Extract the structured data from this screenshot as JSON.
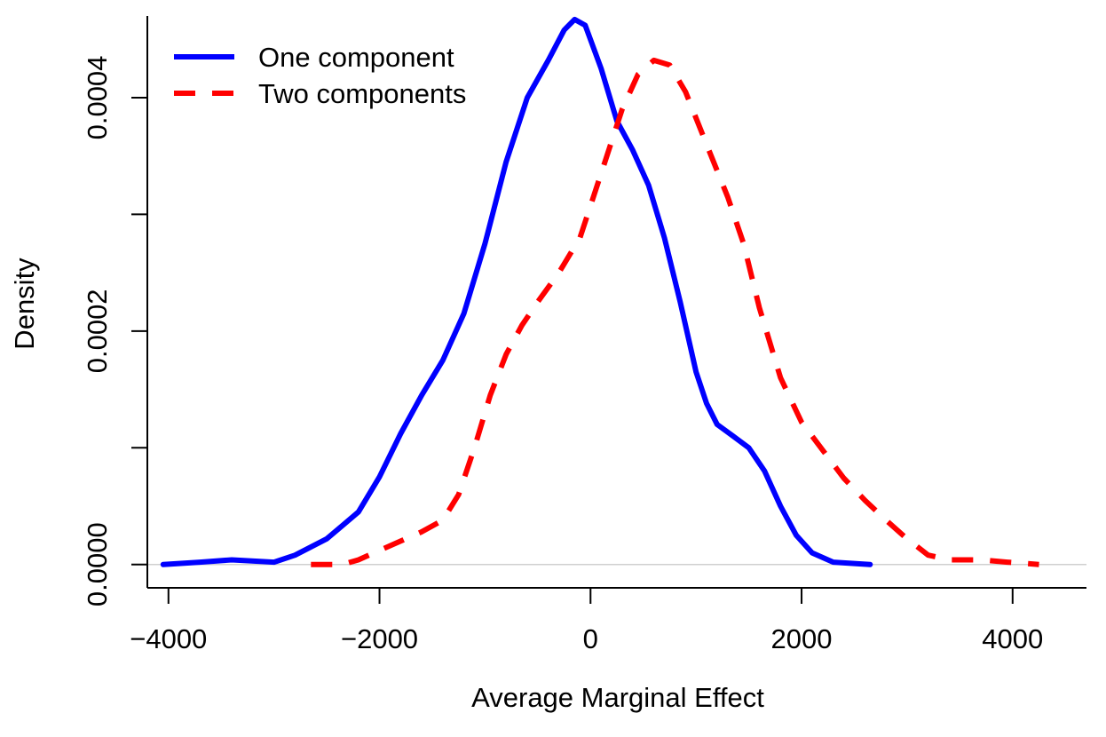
{
  "chart_data": {
    "type": "line",
    "xlabel": "Average Marginal Effect",
    "ylabel": "Density",
    "xlim": [
      -4200,
      4700
    ],
    "ylim": [
      -2e-05,
      0.00047
    ],
    "x_ticks": [
      -4000,
      -2000,
      0,
      2000,
      4000
    ],
    "x_tick_labels": [
      "−4000",
      "−2000",
      "0",
      "2000",
      "4000"
    ],
    "y_ticks": [
      0.0,
      0.0001,
      0.0002,
      0.0003,
      0.0004
    ],
    "y_tick_labels": [
      "0.0000",
      "",
      "0.0002",
      "",
      "0.0004"
    ],
    "grid": false,
    "baseline": 0,
    "legend": {
      "position": "top-left"
    },
    "series": [
      {
        "name": "One component",
        "color": "#0000ff",
        "style": "solid",
        "points": [
          [
            -4050,
            0.0
          ],
          [
            -3700,
            2e-06
          ],
          [
            -3400,
            4e-06
          ],
          [
            -3000,
            2e-06
          ],
          [
            -2800,
            8e-06
          ],
          [
            -2500,
            2.2e-05
          ],
          [
            -2200,
            4.5e-05
          ],
          [
            -2000,
            7.5e-05
          ],
          [
            -1800,
            0.000112
          ],
          [
            -1600,
            0.000145
          ],
          [
            -1400,
            0.000175
          ],
          [
            -1200,
            0.000215
          ],
          [
            -1000,
            0.000275
          ],
          [
            -800,
            0.000345
          ],
          [
            -600,
            0.0004
          ],
          [
            -400,
            0.000432
          ],
          [
            -250,
            0.000458
          ],
          [
            -150,
            0.000467
          ],
          [
            -50,
            0.000462
          ],
          [
            100,
            0.000425
          ],
          [
            250,
            0.00038
          ],
          [
            400,
            0.000355
          ],
          [
            550,
            0.000325
          ],
          [
            700,
            0.00028
          ],
          [
            850,
            0.000225
          ],
          [
            1000,
            0.000165
          ],
          [
            1100,
            0.000138
          ],
          [
            1200,
            0.00012
          ],
          [
            1350,
            0.00011
          ],
          [
            1500,
            0.0001
          ],
          [
            1650,
            8e-05
          ],
          [
            1800,
            5e-05
          ],
          [
            1950,
            2.5e-05
          ],
          [
            2100,
            1e-05
          ],
          [
            2300,
            2e-06
          ],
          [
            2650,
            0.0
          ]
        ]
      },
      {
        "name": "Two components",
        "color": "#ff0000",
        "style": "dashed",
        "points": [
          [
            -2650,
            0.0
          ],
          [
            -2350,
            0.0
          ],
          [
            -2200,
            4e-06
          ],
          [
            -2000,
            1.2e-05
          ],
          [
            -1800,
            2e-05
          ],
          [
            -1600,
            2.8e-05
          ],
          [
            -1400,
            3.8e-05
          ],
          [
            -1250,
            6e-05
          ],
          [
            -1100,
            0.0001
          ],
          [
            -950,
            0.000145
          ],
          [
            -800,
            0.00018
          ],
          [
            -650,
            0.000205
          ],
          [
            -500,
            0.000225
          ],
          [
            -300,
            0.00025
          ],
          [
            -100,
            0.00028
          ],
          [
            100,
            0.000335
          ],
          [
            300,
            0.00039
          ],
          [
            450,
            0.00042
          ],
          [
            600,
            0.000432
          ],
          [
            750,
            0.000428
          ],
          [
            900,
            0.000405
          ],
          [
            1100,
            0.00036
          ],
          [
            1300,
            0.000315
          ],
          [
            1450,
            0.000275
          ],
          [
            1600,
            0.00022
          ],
          [
            1800,
            0.00016
          ],
          [
            2000,
            0.000122
          ],
          [
            2200,
            9.8e-05
          ],
          [
            2400,
            7.4e-05
          ],
          [
            2600,
            5.5e-05
          ],
          [
            2800,
            3.8e-05
          ],
          [
            3000,
            2.2e-05
          ],
          [
            3200,
            8e-06
          ],
          [
            3400,
            4e-06
          ],
          [
            3700,
            4e-06
          ],
          [
            3950,
            2e-06
          ],
          [
            4250,
            0.0
          ]
        ]
      }
    ]
  }
}
